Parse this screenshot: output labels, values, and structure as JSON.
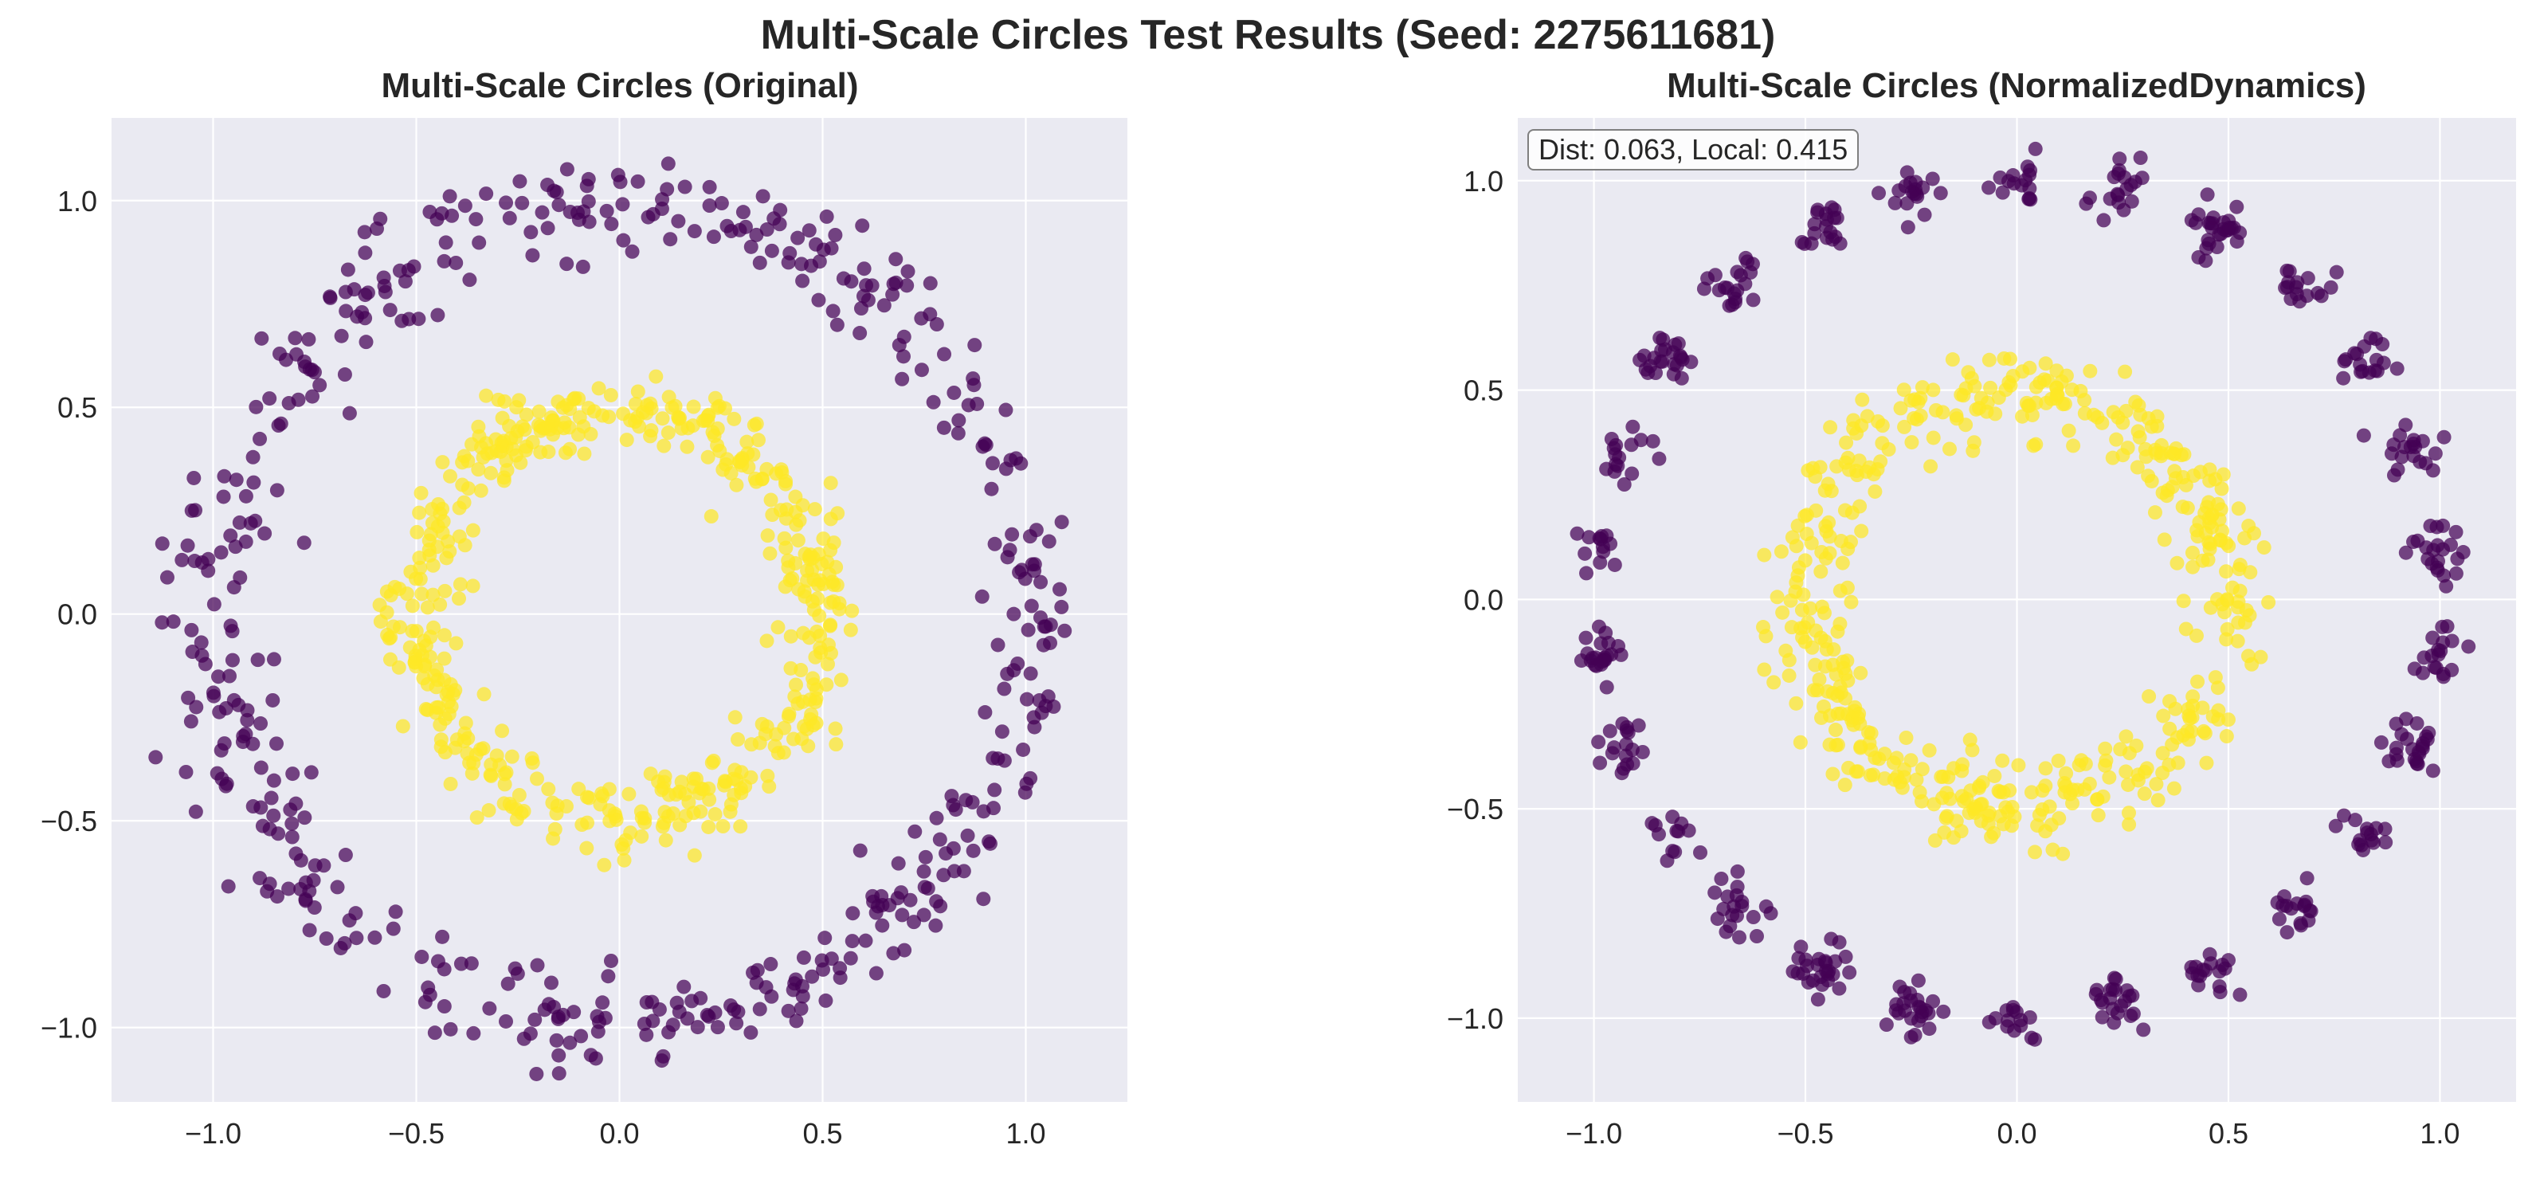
{
  "figure": {
    "title": "Multi-Scale Circles Test Results (Seed: 2275611681)"
  },
  "chart_data": [
    {
      "type": "scatter",
      "title": "Multi-Scale Circles (Original)",
      "xlabel": "",
      "ylabel": "",
      "xlim": [
        -1.25,
        1.25
      ],
      "ylim": [
        -1.18,
        1.2
      ],
      "xticks": [
        -1.0,
        -0.5,
        0.0,
        0.5,
        1.0
      ],
      "yticks": [
        -1.0,
        -0.5,
        0.0,
        0.5,
        1.0
      ],
      "xtick_labels": [
        "−1.0",
        "−0.5",
        "0.0",
        "0.5",
        "1.0"
      ],
      "ytick_labels": [
        "−1.0",
        "−0.5",
        "0.0",
        "0.5",
        "1.0"
      ],
      "grid": true,
      "legend": "none",
      "series": [
        {
          "color": "#440154",
          "radius_approx": 1.0,
          "spread": 0.06,
          "count": 500
        },
        {
          "color": "#fde725",
          "radius_approx": 0.5,
          "spread": 0.05,
          "count": 500
        }
      ],
      "sample_points": [
        {
          "x": -0.17,
          "y": 1.12,
          "series": 0
        },
        {
          "x": -1.13,
          "y": -0.07,
          "series": 0
        },
        {
          "x": 1.12,
          "y": 0.09,
          "series": 0
        },
        {
          "x": -0.15,
          "y": -1.08,
          "series": 0
        },
        {
          "x": 0.21,
          "y": 0.63,
          "series": 1
        },
        {
          "x": -0.63,
          "y": -0.2,
          "series": 1
        },
        {
          "x": 0.6,
          "y": 0.24,
          "series": 1
        },
        {
          "x": 0.08,
          "y": -0.62,
          "series": 1
        }
      ]
    },
    {
      "type": "scatter",
      "title": "Multi-Scale Circles (NormalizedDynamics)",
      "xlabel": "",
      "ylabel": "",
      "xlim": [
        -1.18,
        1.18
      ],
      "ylim": [
        -1.2,
        1.15
      ],
      "xticks": [
        -1.0,
        -0.5,
        0.0,
        0.5,
        1.0
      ],
      "yticks": [
        -1.0,
        -0.5,
        0.0,
        0.5,
        1.0
      ],
      "xtick_labels": [
        "−1.0",
        "−0.5",
        "0.0",
        "0.5",
        "1.0"
      ],
      "ytick_labels": [
        "−1.0",
        "−0.5",
        "0.0",
        "0.5",
        "1.0"
      ],
      "grid": true,
      "legend": "none",
      "annotation": "Dist: 0.063, Local: 0.415",
      "series": [
        {
          "color": "#440154",
          "radius_approx": 1.0,
          "clusters": 26,
          "count": 500
        },
        {
          "color": "#fde725",
          "radius_approx": 0.5,
          "spread": 0.05,
          "count": 500
        }
      ],
      "sample_points": [
        {
          "x": 0.0,
          "y": 1.03,
          "series": 0
        },
        {
          "x": -1.07,
          "y": -0.03,
          "series": 0
        },
        {
          "x": 1.05,
          "y": 0.2,
          "series": 0
        },
        {
          "x": -0.15,
          "y": -1.08,
          "series": 0
        },
        {
          "x": 0.0,
          "y": 0.6,
          "series": 1
        },
        {
          "x": -0.57,
          "y": 0.0,
          "series": 1
        },
        {
          "x": 0.56,
          "y": 0.0,
          "series": 1
        },
        {
          "x": 0.0,
          "y": -0.57,
          "series": 1
        }
      ]
    }
  ]
}
